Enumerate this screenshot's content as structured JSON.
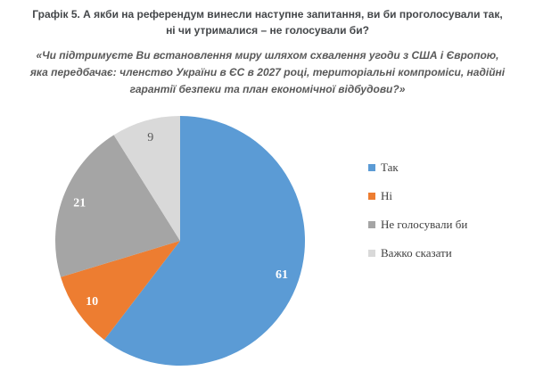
{
  "header": {
    "title_lines": [
      "Графік 5. А якби на референдум винесли наступне запитання, ви би проголосували так,",
      "ні чи утрималися – не голосували би?"
    ],
    "subtitle_lines": [
      "«Чи підтримуєте Ви встановлення миру шляхом схвалення угоди з США і Європою,",
      "яка передбачає: членство України в ЄС в 2027 році, територіальні компроміси, надійні",
      "гарантії безпеки та план економічної відбудови?»"
    ],
    "title_color": "#44474a",
    "subtitle_color": "#595959"
  },
  "chart_data": {
    "type": "pie",
    "title": "Графік 5. А якби на референдум винесли наступне запитання, ви би проголосували так, ні чи утрималися – не голосували би?",
    "subtitle": "«Чи підтримуєте Ви встановлення миру шляхом схвалення угоди з США і Європою, яка передбачає: членство України в ЄС в 2027 році, територіальні компроміси, надійні гарантії безпеки та план економічної відбудови?»",
    "categories": [
      "Так",
      "Ні",
      "Не голосували би",
      "Важко сказати"
    ],
    "values": [
      61,
      10,
      21,
      9
    ],
    "colors": [
      "#5B9BD5",
      "#ED7D31",
      "#A5A5A5",
      "#D9D9D9"
    ],
    "data_label_colors": [
      "#FFFFFF",
      "#FFFFFF",
      "#FFFFFF",
      "#595959"
    ],
    "data_label_bold": [
      true,
      true,
      true,
      false
    ],
    "data_labels_shown": [
      "61",
      "10",
      "21",
      "9"
    ],
    "start_angle_deg": 0,
    "direction": "clockwise",
    "legend_position": "right",
    "grid": false
  }
}
